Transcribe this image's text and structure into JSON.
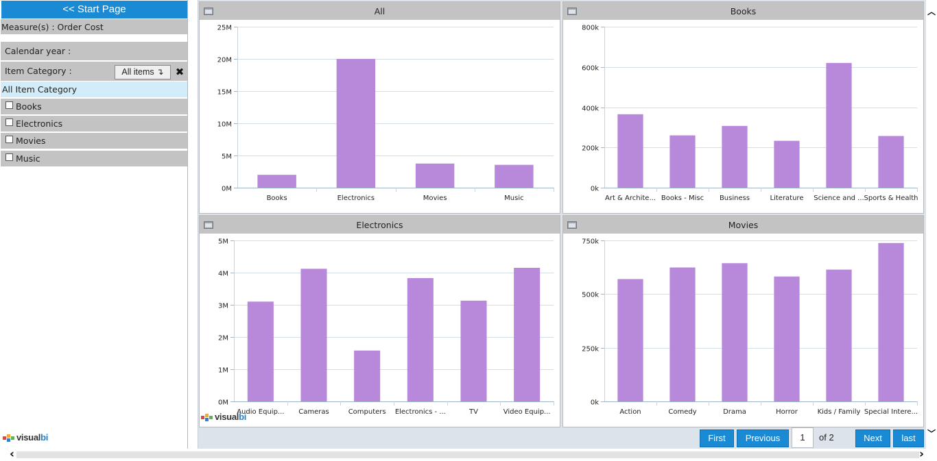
{
  "sidebar": {
    "start_label": "<< Start Page",
    "measure_label": "Measure(s) : Order Cost",
    "calendar_label": "Calendar year :",
    "item_category_label": "Item Category :",
    "all_items_label": "All items ↴",
    "clear_icon": "✖",
    "all_category_label": "All Item Category",
    "categories": [
      "Books",
      "Electronics",
      "Movies",
      "Music"
    ]
  },
  "logo": {
    "text_a": "visual",
    "text_b": "bi"
  },
  "pager": {
    "first": "First",
    "previous": "Previous",
    "page": "1",
    "of": "of 2",
    "next": "Next",
    "last": "last"
  },
  "scroll": {
    "up": "︿",
    "down": "﹀",
    "left": "‹",
    "right": "›"
  },
  "colors": {
    "bar": "#b889da",
    "accent": "#1a8ad4",
    "header": "#c3c3c3"
  },
  "chart_data": [
    {
      "type": "bar",
      "title": "All",
      "categories": [
        "Books",
        "Electronics",
        "Movies",
        "Music"
      ],
      "values": [
        2000000,
        20000000,
        3750000,
        3550000
      ],
      "ylim": [
        0,
        25000000
      ],
      "ticks": [
        0,
        5000000,
        10000000,
        15000000,
        20000000,
        25000000
      ],
      "tick_labels": [
        "0M",
        "5M",
        "10M",
        "15M",
        "20M",
        "25M"
      ]
    },
    {
      "type": "bar",
      "title": "Books",
      "categories": [
        "Art & Archite...",
        "Books - Misc",
        "Business",
        "Literature",
        "Science and ...",
        "Sports & Health"
      ],
      "values": [
        365000,
        260000,
        307000,
        233000,
        620000,
        257000
      ],
      "ylim": [
        0,
        800000
      ],
      "ticks": [
        0,
        200000,
        400000,
        600000,
        800000
      ],
      "tick_labels": [
        "0k",
        "200k",
        "400k",
        "600k",
        "800k"
      ]
    },
    {
      "type": "bar",
      "title": "Electronics",
      "categories": [
        "Audio Equip...",
        "Cameras",
        "Computers",
        "Electronics - ...",
        "TV",
        "Video Equip..."
      ],
      "values": [
        3100000,
        4120000,
        1580000,
        3830000,
        3130000,
        4150000
      ],
      "ylim": [
        0,
        5000000
      ],
      "ticks": [
        0,
        1000000,
        2000000,
        3000000,
        4000000,
        5000000
      ],
      "tick_labels": [
        "0M",
        "1M",
        "2M",
        "3M",
        "4M",
        "5M"
      ]
    },
    {
      "type": "bar",
      "title": "Movies",
      "categories": [
        "Action",
        "Comedy",
        "Drama",
        "Horror",
        "Kids / Family",
        "Special Intere..."
      ],
      "values": [
        570000,
        624000,
        644000,
        582000,
        614000,
        738000
      ],
      "ylim": [
        0,
        750000
      ],
      "ticks": [
        0,
        250000,
        500000,
        750000
      ],
      "tick_labels": [
        "0k",
        "250k",
        "500k",
        "750k"
      ]
    }
  ]
}
